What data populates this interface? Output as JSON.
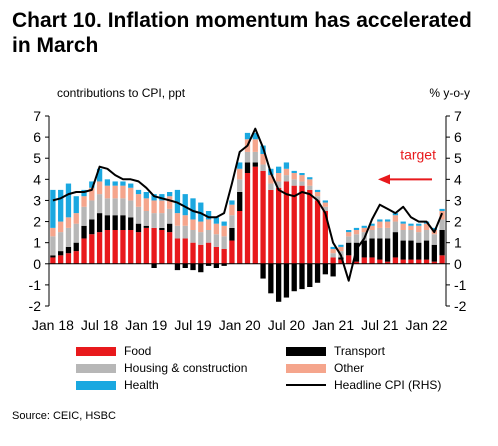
{
  "title": "Chart 10. Inflation momentum has accelerated in March",
  "source": "Source: CEIC, HSBC",
  "colors": {
    "food": "#e8191c",
    "transport": "#000000",
    "housing": "#b7b7b7",
    "other": "#f5a58c",
    "health": "#1aa8e0",
    "headline": "#000000",
    "annotation": "#e8191c"
  },
  "chart_data": {
    "type": "bar",
    "stacked": true,
    "ylabel_left": "contributions to CPI, ppt",
    "ylabel_right": "% y-o-y",
    "ylim": [
      -2,
      7
    ],
    "yticks": [
      -2,
      -1,
      0,
      1,
      2,
      3,
      4,
      5,
      6,
      7
    ],
    "xtick_labels": [
      "Jan 18",
      "Jul 18",
      "Jan 19",
      "Jul 19",
      "Jan 20",
      "Jul 20",
      "Jan 21",
      "Jul 21",
      "Jan 22"
    ],
    "xtick_index": [
      0,
      6,
      12,
      18,
      24,
      30,
      36,
      42,
      48
    ],
    "months": [
      "Jan 18",
      "Feb 18",
      "Mar 18",
      "Apr 18",
      "May 18",
      "Jun 18",
      "Jul 18",
      "Aug 18",
      "Sep 18",
      "Oct 18",
      "Nov 18",
      "Dec 18",
      "Jan 19",
      "Feb 19",
      "Mar 19",
      "Apr 19",
      "May 19",
      "Jun 19",
      "Jul 19",
      "Aug 19",
      "Sep 19",
      "Oct 19",
      "Nov 19",
      "Dec 19",
      "Jan 20",
      "Feb 20",
      "Mar 20",
      "Apr 20",
      "May 20",
      "Jun 20",
      "Jul 20",
      "Aug 20",
      "Sep 20",
      "Oct 20",
      "Nov 20",
      "Dec 20",
      "Jan 21",
      "Feb 21",
      "Mar 21",
      "Apr 21",
      "May 21",
      "Jun 21",
      "Jul 21",
      "Aug 21",
      "Sep 21",
      "Oct 21",
      "Nov 21",
      "Dec 21",
      "Jan 22",
      "Feb 22",
      "Mar 22"
    ],
    "legend_position": "bottom",
    "series": [
      {
        "name": "Food",
        "key": "food",
        "values": [
          0.3,
          0.4,
          0.5,
          0.6,
          1.2,
          1.4,
          1.5,
          1.6,
          1.6,
          1.6,
          1.6,
          1.5,
          1.7,
          1.7,
          1.6,
          1.5,
          1.2,
          1.2,
          1.0,
          0.9,
          1.0,
          0.8,
          0.7,
          1.1,
          2.5,
          4.3,
          4.6,
          4.4,
          3.5,
          3.6,
          3.9,
          3.7,
          3.7,
          3.5,
          3.0,
          2.5,
          0.3,
          0.2,
          0.4,
          0.1,
          0.3,
          0.3,
          0.2,
          0.1,
          0.3,
          0.2,
          0.2,
          0.2,
          0.2,
          0.1,
          0.4
        ]
      },
      {
        "name": "Transport",
        "key": "transport",
        "values": [
          0.1,
          0.2,
          0.3,
          0.4,
          0.6,
          0.7,
          0.9,
          0.7,
          0.7,
          0.7,
          0.6,
          0.4,
          0.1,
          -0.2,
          0.1,
          0.4,
          -0.3,
          -0.2,
          -0.3,
          -0.4,
          -0.1,
          -0.2,
          -0.1,
          0.6,
          0.9,
          0.5,
          0.2,
          -0.7,
          -1.4,
          -1.8,
          -1.6,
          -1.3,
          -1.2,
          -1.1,
          -0.9,
          -0.5,
          -0.6,
          0.1,
          0.6,
          0.9,
          0.8,
          0.9,
          1.0,
          1.1,
          1.2,
          0.9,
          0.9,
          0.8,
          0.9,
          0.8,
          1.2
        ]
      },
      {
        "name": "Housing & construction",
        "key": "housing",
        "values": [
          0.9,
          0.9,
          0.9,
          0.9,
          0.9,
          0.9,
          0.9,
          0.8,
          0.8,
          0.8,
          0.8,
          0.8,
          0.7,
          0.7,
          0.7,
          0.7,
          0.6,
          0.6,
          0.6,
          0.6,
          0.6,
          0.6,
          0.6,
          0.6,
          0.6,
          0.5,
          0.5,
          0.3,
          0.3,
          0.3,
          0.3,
          0.3,
          0.2,
          0.2,
          0.2,
          0.2,
          0.2,
          0.3,
          0.3,
          0.4,
          0.4,
          0.4,
          0.5,
          0.5,
          0.5,
          0.5,
          0.5,
          0.5,
          0.5,
          0.5,
          0.5
        ]
      },
      {
        "name": "Other",
        "key": "other",
        "values": [
          0.4,
          0.5,
          0.5,
          0.5,
          0.5,
          0.6,
          0.6,
          0.6,
          0.6,
          0.6,
          0.6,
          0.6,
          0.6,
          0.6,
          0.6,
          0.6,
          0.6,
          0.5,
          0.5,
          0.5,
          0.5,
          0.5,
          0.5,
          0.5,
          0.5,
          0.6,
          0.6,
          0.5,
          0.4,
          0.4,
          0.3,
          0.3,
          0.3,
          0.3,
          0.2,
          0.2,
          0.2,
          0.2,
          0.2,
          0.2,
          0.2,
          0.2,
          0.3,
          0.3,
          0.3,
          0.3,
          0.2,
          0.3,
          0.3,
          0.2,
          0.4
        ]
      },
      {
        "name": "Health",
        "key": "health",
        "values": [
          1.8,
          1.5,
          1.6,
          0.8,
          0.3,
          0.3,
          0.6,
          0.3,
          0.2,
          0.2,
          0.2,
          0.2,
          0.3,
          0.3,
          0.3,
          0.2,
          1.1,
          1.0,
          1.0,
          0.9,
          0.4,
          0.3,
          0.2,
          0.2,
          0.3,
          0.3,
          0.3,
          0.4,
          0.3,
          0.3,
          0.3,
          0.1,
          0.1,
          0.1,
          0.1,
          0.1,
          0.1,
          0.1,
          0.1,
          0.1,
          0.1,
          0.1,
          0.1,
          0.1,
          0.1,
          0.1,
          0.1,
          0.1,
          0.1,
          0.1,
          0.1
        ]
      }
    ],
    "headline": {
      "name": "Headline CPI (RHS)",
      "values": [
        3.0,
        3.1,
        3.3,
        3.4,
        3.4,
        3.5,
        4.6,
        4.5,
        4.2,
        4.0,
        4.0,
        3.9,
        3.6,
        3.2,
        3.1,
        3.0,
        2.9,
        2.7,
        2.5,
        2.4,
        2.2,
        2.2,
        2.4,
        3.8,
        5.3,
        5.6,
        6.4,
        5.5,
        4.3,
        3.5,
        3.3,
        3.2,
        3.4,
        3.3,
        3.0,
        2.4,
        1.0,
        0.4,
        -0.8,
        0.7,
        1.2,
        2.1,
        2.8,
        2.6,
        2.4,
        2.7,
        2.2,
        2.0,
        2.0,
        1.5,
        2.4
      ]
    },
    "annotations": [
      {
        "text": "target",
        "value": 4
      }
    ]
  }
}
